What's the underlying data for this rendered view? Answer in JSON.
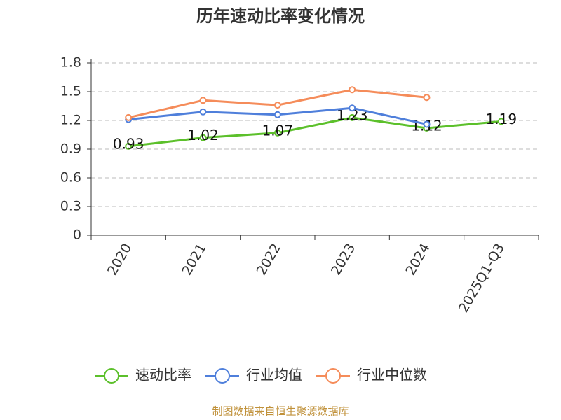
{
  "chart_data": {
    "type": "line",
    "title": "历年速动比率变化情况",
    "categories": [
      "2020",
      "2021",
      "2022",
      "2023",
      "2024",
      "2025Q1-Q3"
    ],
    "series": [
      {
        "name": "速动比率",
        "color": "#5cc02b",
        "values": [
          0.93,
          1.02,
          1.07,
          1.23,
          1.12,
          1.19
        ],
        "show_labels": true
      },
      {
        "name": "行业均值",
        "color": "#4f7fdb",
        "values": [
          1.21,
          1.29,
          1.26,
          1.33,
          1.16,
          null
        ],
        "show_labels": false
      },
      {
        "name": "行业中位数",
        "color": "#f58c5a",
        "values": [
          1.23,
          1.41,
          1.36,
          1.52,
          1.44,
          null
        ],
        "show_labels": false
      }
    ],
    "ylim": [
      0,
      1.8
    ],
    "yticks": [
      0,
      0.3,
      0.6,
      0.9,
      1.2,
      1.5,
      1.8
    ],
    "grid": true,
    "legend": "bottom",
    "source": "制图数据来自恒生聚源数据库"
  }
}
